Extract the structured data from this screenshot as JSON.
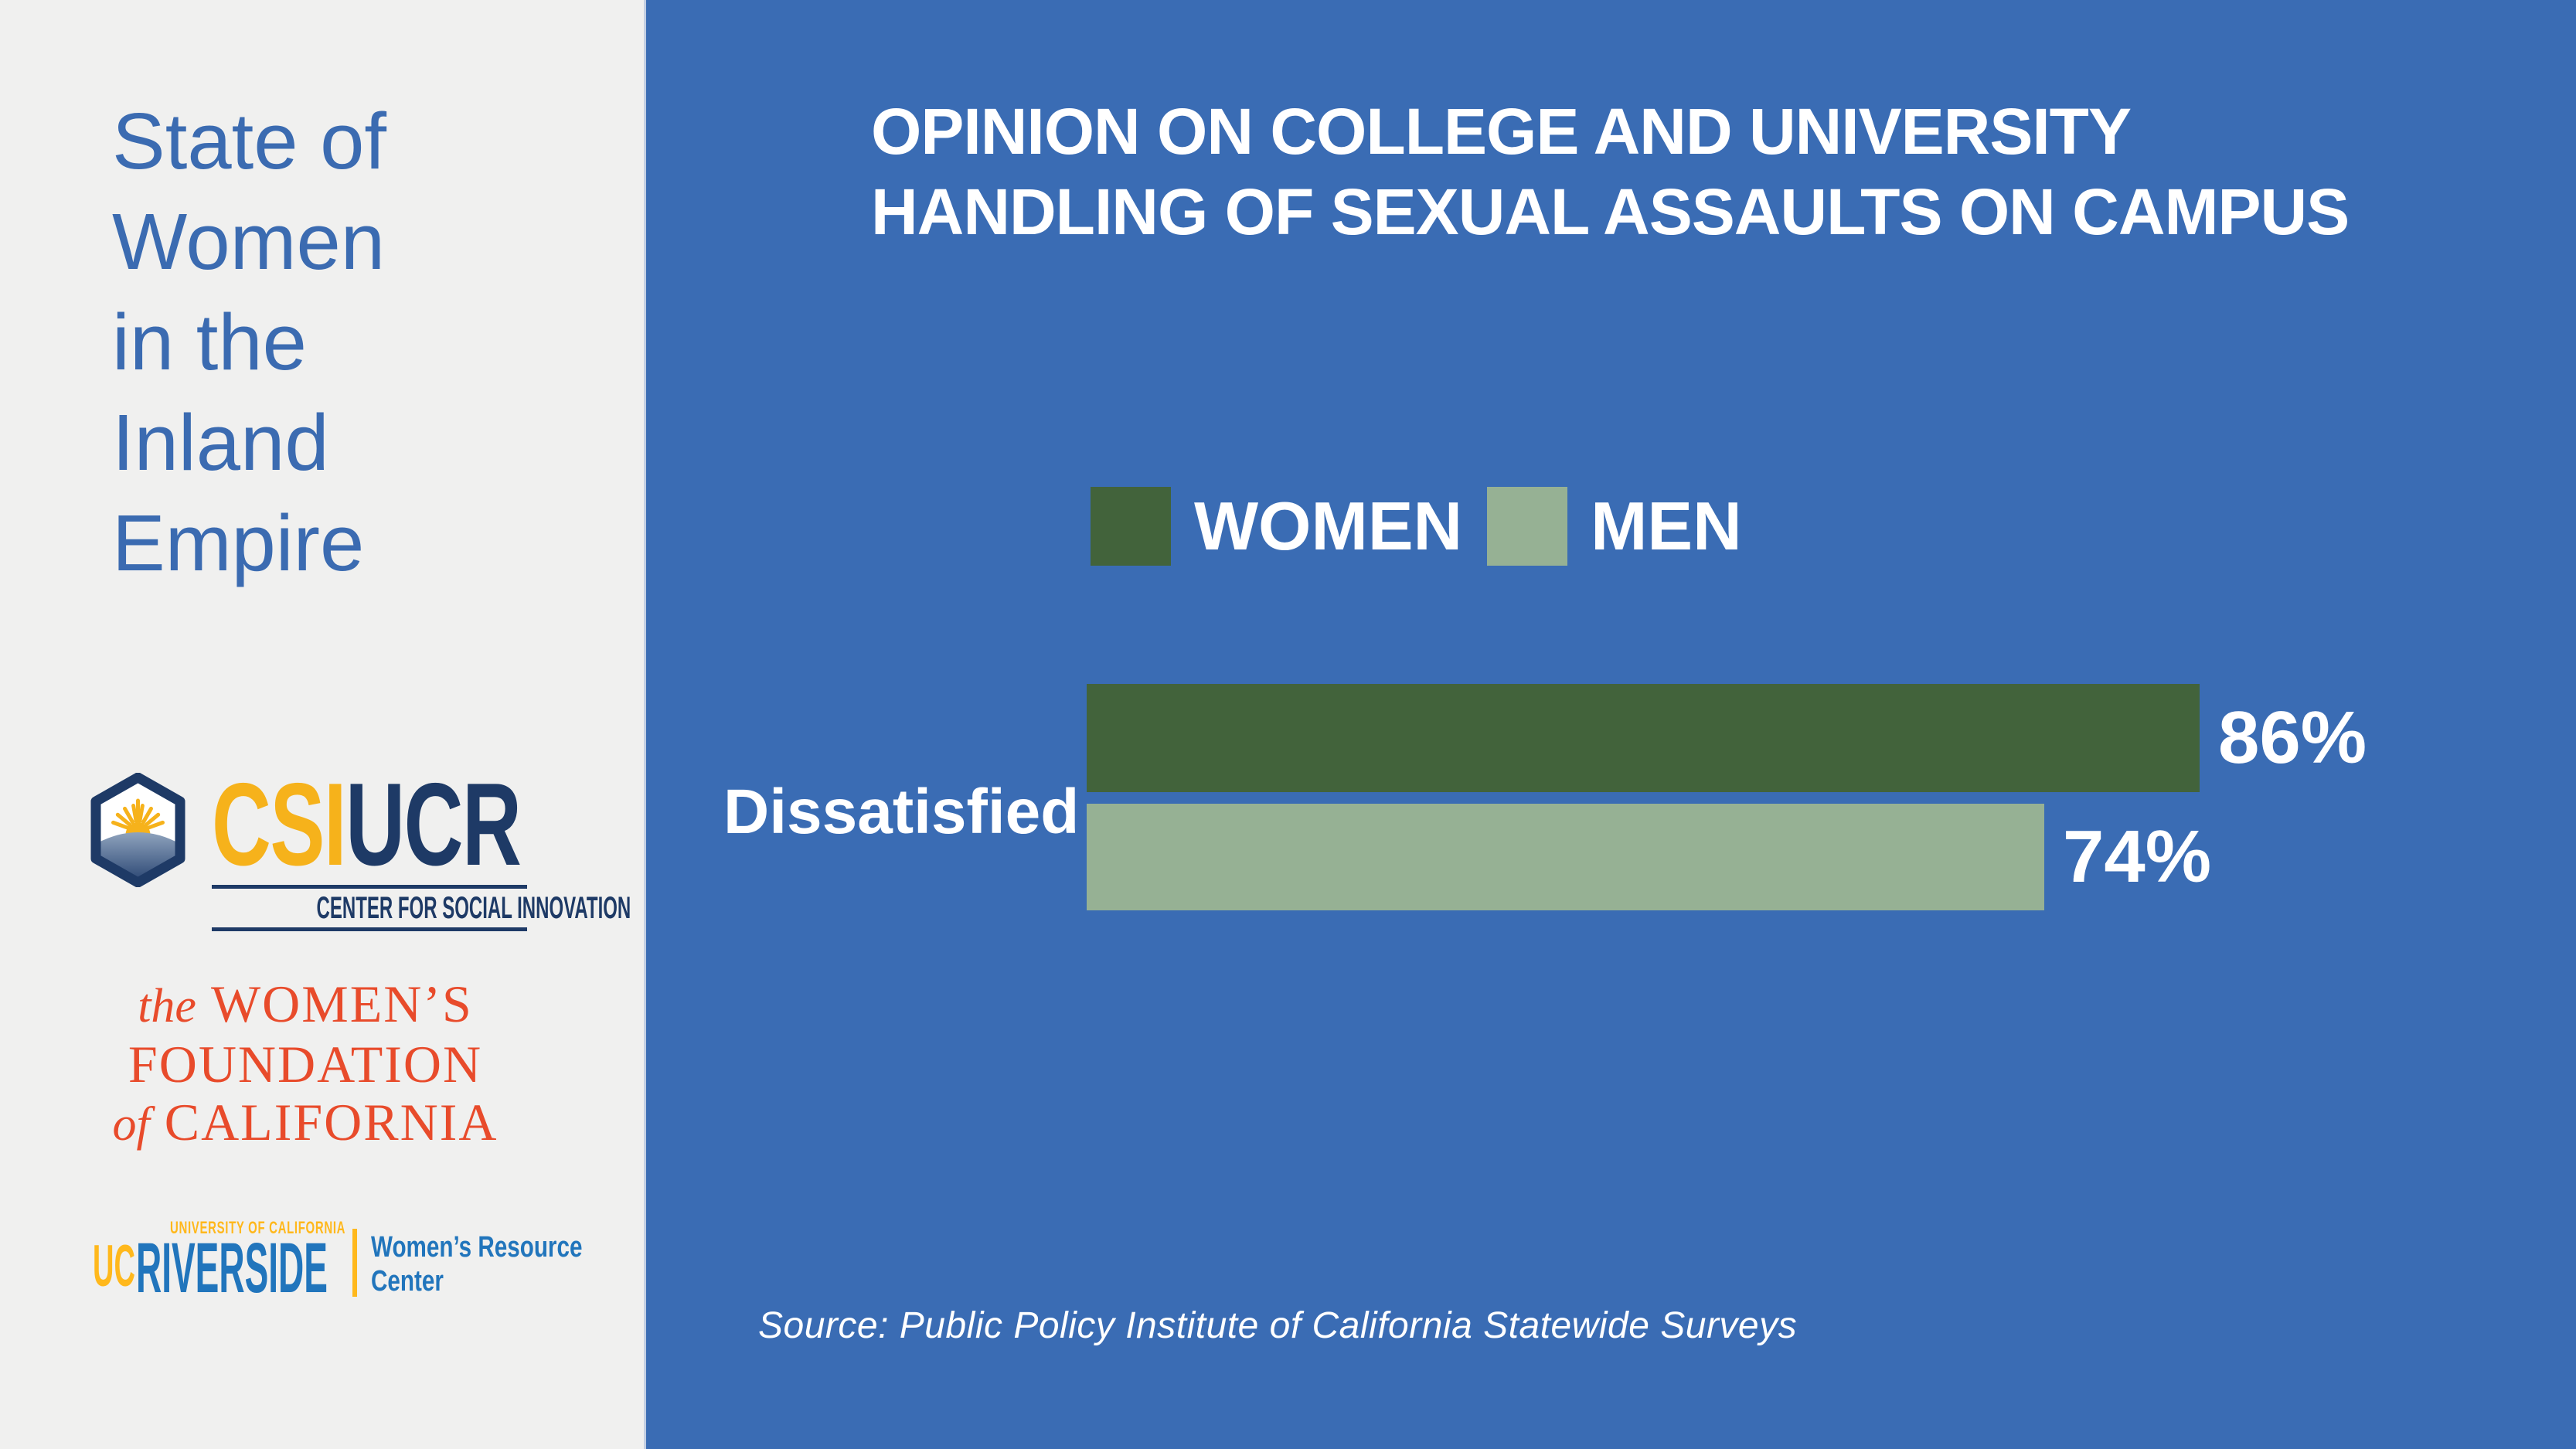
{
  "sidebar": {
    "title": "State of\nWomen\nin the\nInland\nEmpire",
    "logos": {
      "csi": {
        "acronym_gold": "CSI",
        "acronym_navy": "UCR",
        "subtitle": "CENTER FOR SOCIAL INNOVATION"
      },
      "wfc": {
        "pre1": "the",
        "line1": "WOMEN’S",
        "line2": "FOUNDATION",
        "pre3": "of",
        "line3": "CALIFORNIA"
      },
      "ucr": {
        "uc": "UC",
        "system": "UNIVERSITY OF CALIFORNIA",
        "campus": "RIVERSIDE",
        "unit_line1": "Women’s Resource",
        "unit_line2": "Center"
      }
    }
  },
  "chart_data": {
    "type": "bar",
    "orientation": "horizontal",
    "title": "OPINION ON COLLEGE AND UNIVERSITY\nHANDLING OF SEXUAL ASSAULTS ON CAMPUS",
    "categories": [
      "Dissatisfied"
    ],
    "series": [
      {
        "name": "WOMEN",
        "color": "#42633B",
        "values": [
          86
        ],
        "labels": [
          "86%"
        ]
      },
      {
        "name": "MEN",
        "color": "#96B194",
        "values": [
          74
        ],
        "labels": [
          "74%"
        ]
      }
    ],
    "xlim": [
      0,
      100
    ],
    "value_suffix": "%",
    "grid": false,
    "legend_position": "top-center",
    "source": "Source: Public Policy Institute of California Statewide Surveys"
  },
  "colors": {
    "panel_blue": "#3A6CB4",
    "sidebar_bg": "#F0F0EF",
    "sidebar_title_blue": "#3B6BB1",
    "text_white": "#FFFFFF",
    "csi_gold": "#F6B21B",
    "csi_navy": "#1E3A66",
    "wfc_red": "#E84B2B",
    "ucr_blue": "#2175BC",
    "ucr_gold": "#FFB81C",
    "women_green": "#42633B",
    "men_green": "#96B194"
  }
}
